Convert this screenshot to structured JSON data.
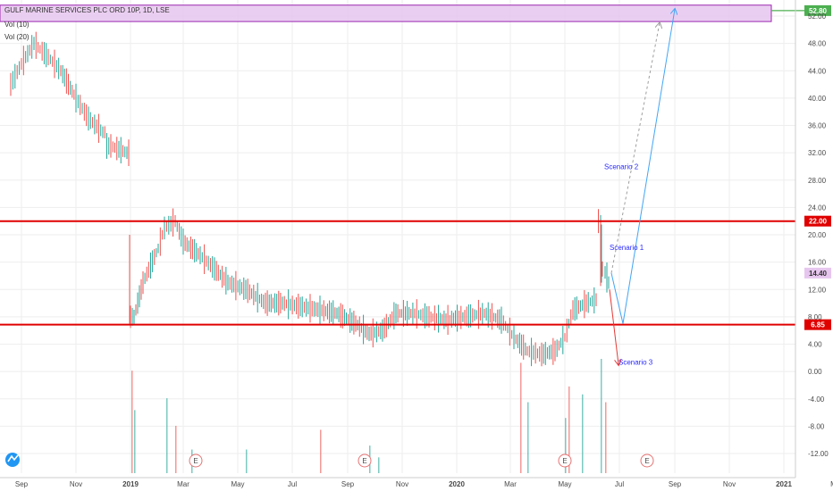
{
  "header": {
    "symbol_title": "GULF MARINE SERVICES PLC ORD 10P, 1D, LSE",
    "vol10": "Vol (10)",
    "vol20": "Vol (20)"
  },
  "colors": {
    "up": "#26a69a",
    "down": "#ef5350",
    "level_line": "#e00000",
    "target_line": "#4caf50",
    "zone_fill": "#e6c6ee",
    "zone_stroke": "#9c27b0",
    "arrow_blue": "#42a5f5",
    "arrow_red": "#e53935",
    "arrow_dashed": "#9e9e9e",
    "price_badge": "#e6c6ee",
    "event_marker": "#e57373",
    "logo": "#2196f3"
  },
  "icons": {
    "logo": "tradingview-logo-icon",
    "earnings": "earnings-e-icon"
  },
  "chart_data": {
    "type": "line",
    "title": "GULF MARINE SERVICES PLC ORD 10P, 1D, LSE",
    "xlabel": "",
    "ylabel": "",
    "ylim": [
      -14,
      54
    ],
    "y_ticks": [
      "52.00",
      "48.00",
      "44.00",
      "40.00",
      "36.00",
      "32.00",
      "28.00",
      "24.00",
      "20.00",
      "16.00",
      "12.00",
      "8.00",
      "4.00",
      "0.00",
      "-4.00",
      "-8.00",
      "-12.00"
    ],
    "x_ticks": [
      "Sep",
      "Nov",
      "2019",
      "Mar",
      "May",
      "Jul",
      "Sep",
      "Nov",
      "2020",
      "Mar",
      "May",
      "Jul",
      "Sep",
      "Nov",
      "2021",
      "Mar"
    ],
    "series": [
      {
        "x": [
          "2018-08-20",
          "2018-09-01",
          "2018-09-15",
          "2018-10-01",
          "2018-10-15",
          "2018-11-01",
          "2018-11-15",
          "2018-12-01",
          "2018-12-10",
          "2018-12-28",
          "2019-01-05",
          "2019-01-15",
          "2019-02-01",
          "2019-02-08",
          "2019-02-20",
          "2019-03-01",
          "2019-03-20",
          "2019-04-05",
          "2019-04-20",
          "2019-05-10",
          "2019-06-01",
          "2019-06-20",
          "2019-07-10",
          "2019-08-01",
          "2019-08-20",
          "2019-09-10",
          "2019-09-25",
          "2019-10-10",
          "2019-10-25",
          "2019-11-15",
          "2019-12-01",
          "2019-12-20",
          "2020-01-10",
          "2020-02-01",
          "2020-02-20",
          "2020-03-05",
          "2020-03-20",
          "2020-04-05",
          "2020-04-20",
          "2020-05-01",
          "2020-05-10",
          "2020-05-25",
          "2020-06-05",
          "2020-06-10",
          "2020-06-12",
          "2020-06-15",
          "2020-06-19",
          "2020-06-22"
        ],
        "values": [
          42,
          45,
          48,
          46,
          44,
          40,
          37,
          35,
          33,
          32,
          8,
          13,
          18,
          21,
          22,
          19,
          17,
          15,
          13,
          12,
          10,
          10,
          9.5,
          9,
          8.5,
          7,
          5.5,
          6,
          8.5,
          8.5,
          8,
          7.5,
          8,
          8.5,
          7.5,
          5,
          3,
          2.5,
          3,
          5,
          9,
          10,
          10.5,
          22,
          15,
          14.5,
          13,
          14.4
        ]
      }
    ],
    "volume": {
      "x": [
        "2019-01-02",
        "2019-01-05",
        "2019-02-10",
        "2019-02-20",
        "2019-03-10",
        "2019-05-10",
        "2019-08-01",
        "2019-09-25",
        "2019-10-05",
        "2020-03-12",
        "2020-03-20",
        "2020-05-01",
        "2020-05-05",
        "2020-05-20",
        "2020-06-10",
        "2020-06-15"
      ],
      "values": [
        13,
        8,
        9.5,
        6,
        3,
        3,
        5.5,
        3.5,
        2,
        14,
        9,
        7,
        11,
        10,
        14.5,
        9
      ]
    },
    "horizontal_levels": [
      {
        "price": 22.0,
        "label": "22.00"
      },
      {
        "price": 6.85,
        "label": "6.85"
      }
    ],
    "target_level": {
      "price": 52.8,
      "label": "52.80"
    },
    "last_price": {
      "price": 14.4,
      "label": "14.40"
    },
    "resistance_zone": [
      51.2,
      53.6
    ],
    "scenarios": [
      {
        "name": "Scenario 1",
        "path_x": [
          "2020-06-22",
          "2020-07-05",
          "2020-09-01"
        ],
        "path_y": [
          14.4,
          7.0,
          53.0
        ]
      },
      {
        "name": "Scenario 2",
        "path_x": [
          "2020-06-22",
          "2020-08-15"
        ],
        "path_y": [
          14.4,
          51.0
        ]
      },
      {
        "name": "Scenario 3",
        "path_x": [
          "2020-06-20",
          "2020-06-30"
        ],
        "path_y": [
          12.0,
          1.0
        ]
      }
    ],
    "earnings_markers": [
      "2019-03-15",
      "2019-09-20",
      "2020-05-01",
      "2020-08-01"
    ],
    "grid": true
  }
}
